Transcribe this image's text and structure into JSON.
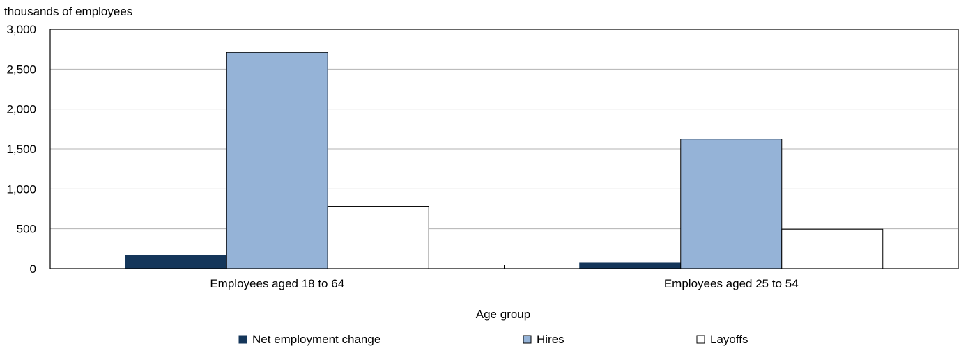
{
  "chart_data": {
    "type": "bar",
    "ylabel": "thousands of employees",
    "xlabel": "Age group",
    "categories": [
      "Employees aged 18 to 64",
      "Employees aged 25 to 54"
    ],
    "series": [
      {
        "name": "Net employment change",
        "values": [
          170,
          70
        ],
        "color": "#14365a"
      },
      {
        "name": "Hires",
        "values": [
          2710,
          1625
        ],
        "color": "#95b3d7"
      },
      {
        "name": "Layoffs",
        "values": [
          780,
          495
        ],
        "color": "#ffffff"
      }
    ],
    "ylim": [
      0,
      3000
    ],
    "yticks": [
      "0",
      "500",
      "1,000",
      "1,500",
      "2,000",
      "2,500",
      "3,000"
    ],
    "ytick_values": [
      0,
      500,
      1000,
      1500,
      2000,
      2500,
      3000
    ],
    "grid": true,
    "legend_position": "bottom"
  }
}
